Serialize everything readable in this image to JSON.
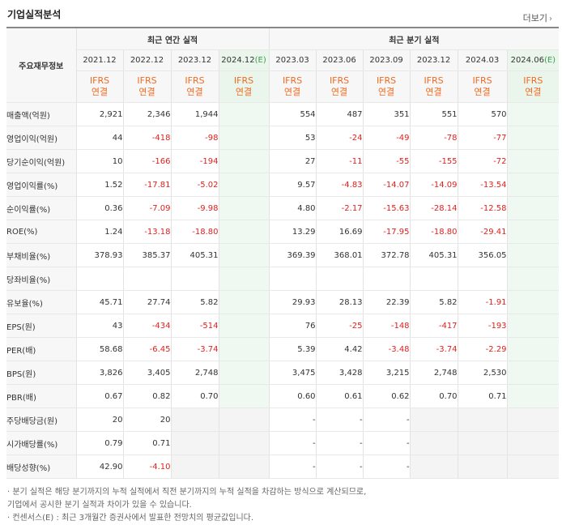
{
  "title": "기업실적분석",
  "more_label": "더보기",
  "more_icon": "chevron-right-icon",
  "header": {
    "row_label": "주요재무정보",
    "annual_group": "최근 연간 실적",
    "quarter_group": "최근 분기 실적",
    "annual_periods": [
      "2021.12",
      "2022.12",
      "2023.12",
      "2024.12"
    ],
    "quarter_periods": [
      "2023.03",
      "2023.06",
      "2023.09",
      "2023.12",
      "2024.03",
      "2024.06"
    ],
    "estimate_mark": "(E)",
    "ifrs_top": "IFRS",
    "ifrs_bottom": "연결"
  },
  "colors": {
    "negative": "#e0211e",
    "ifrs": "#f16a1f",
    "estimate_bg": "#f0f9f1",
    "estimate_mark": "#3e9b4b"
  },
  "rows": [
    {
      "label": "매출액(억원)",
      "values": [
        "2,921",
        "2,346",
        "1,944",
        "",
        "554",
        "487",
        "351",
        "551",
        "570",
        ""
      ],
      "group": true
    },
    {
      "label": "영업이익(억원)",
      "values": [
        "44",
        "-418",
        "-98",
        "",
        "53",
        "-24",
        "-49",
        "-78",
        "-77",
        ""
      ]
    },
    {
      "label": "당기순이익(억원)",
      "values": [
        "10",
        "-166",
        "-194",
        "",
        "27",
        "-11",
        "-55",
        "-155",
        "-72",
        ""
      ]
    },
    {
      "label": "영업이익률(%)",
      "values": [
        "1.52",
        "-17.81",
        "-5.02",
        "",
        "9.57",
        "-4.83",
        "-14.07",
        "-14.09",
        "-13.54",
        ""
      ],
      "group": true
    },
    {
      "label": "순이익률(%)",
      "values": [
        "0.36",
        "-7.09",
        "-9.98",
        "",
        "4.80",
        "-2.17",
        "-15.63",
        "-28.14",
        "-12.58",
        ""
      ]
    },
    {
      "label": "ROE(%)",
      "values": [
        "1.24",
        "-13.18",
        "-18.80",
        "",
        "13.29",
        "16.69",
        "-17.95",
        "-18.80",
        "-29.41",
        ""
      ]
    },
    {
      "label": "부채비율(%)",
      "values": [
        "378.93",
        "385.37",
        "405.31",
        "",
        "369.39",
        "368.01",
        "372.78",
        "405.31",
        "356.05",
        ""
      ],
      "group": true
    },
    {
      "label": "당좌비율(%)",
      "values": [
        "",
        "",
        "",
        "",
        "",
        "",
        "",
        "",
        "",
        ""
      ]
    },
    {
      "label": "유보율(%)",
      "values": [
        "45.71",
        "27.74",
        "5.82",
        "",
        "29.93",
        "28.13",
        "22.39",
        "5.82",
        "-1.91",
        ""
      ]
    },
    {
      "label": "EPS(원)",
      "values": [
        "43",
        "-434",
        "-514",
        "",
        "76",
        "-25",
        "-148",
        "-417",
        "-193",
        ""
      ],
      "group": true
    },
    {
      "label": "PER(배)",
      "values": [
        "58.68",
        "-6.45",
        "-3.74",
        "",
        "5.39",
        "4.42",
        "-3.48",
        "-3.74",
        "-2.29",
        ""
      ]
    },
    {
      "label": "BPS(원)",
      "values": [
        "3,826",
        "3,405",
        "2,748",
        "",
        "3,475",
        "3,428",
        "3,215",
        "2,748",
        "2,530",
        ""
      ]
    },
    {
      "label": "PBR(배)",
      "values": [
        "0.67",
        "0.82",
        "0.70",
        "",
        "0.60",
        "0.61",
        "0.62",
        "0.70",
        "0.71",
        ""
      ]
    },
    {
      "label": "주당배당금(원)",
      "values": [
        "20",
        "20",
        "",
        "",
        "-",
        "-",
        "-",
        "",
        "",
        ""
      ],
      "group": true,
      "empty": [
        2,
        3,
        7,
        8,
        9
      ]
    },
    {
      "label": "시가배당률(%)",
      "values": [
        "0.79",
        "0.71",
        "",
        "",
        "-",
        "-",
        "-",
        "",
        "",
        ""
      ],
      "empty": [
        2,
        3,
        7,
        8,
        9
      ]
    },
    {
      "label": "배당성향(%)",
      "values": [
        "42.90",
        "-4.10",
        "",
        "",
        "-",
        "-",
        "-",
        "",
        "",
        ""
      ],
      "empty": [
        2,
        3,
        7,
        8,
        9
      ]
    }
  ],
  "notes": [
    "· 분기 실적은 해당 분기까지의 누적 실적에서 직전 분기까지의 누적 실적을 차감하는 방식으로 계산되므로,",
    "  기업에서 공시한 분기 실적과 차이가 있을 수 있습니다.",
    "· 컨센서스(E) : 최근 3개월간 증권사에서 발표한 전망치의 평균값입니다."
  ]
}
